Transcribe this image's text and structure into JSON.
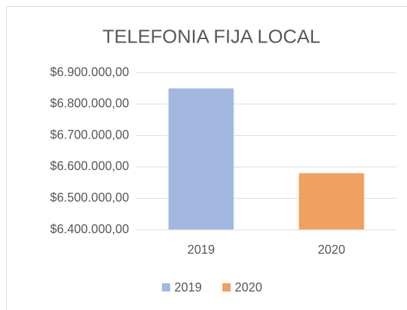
{
  "chart_data": {
    "type": "bar",
    "title": "TELEFONIA FIJA LOCAL",
    "categories": [
      "2019",
      "2020"
    ],
    "values": [
      6850000,
      6580000
    ],
    "colors": [
      "#a2b8e1",
      "#f0a061"
    ],
    "ylim": [
      6400000,
      6900000
    ],
    "yticks": [
      {
        "value": 6400000,
        "label": "$6.400.000,00"
      },
      {
        "value": 6500000,
        "label": "$6.500.000,00"
      },
      {
        "value": 6600000,
        "label": "$6.600.000,00"
      },
      {
        "value": 6700000,
        "label": "$6.700.000,00"
      },
      {
        "value": 6800000,
        "label": "$6.800.000,00"
      },
      {
        "value": 6900000,
        "label": "$6.900.000,00"
      }
    ],
    "grid": true,
    "legend": "bottom"
  }
}
